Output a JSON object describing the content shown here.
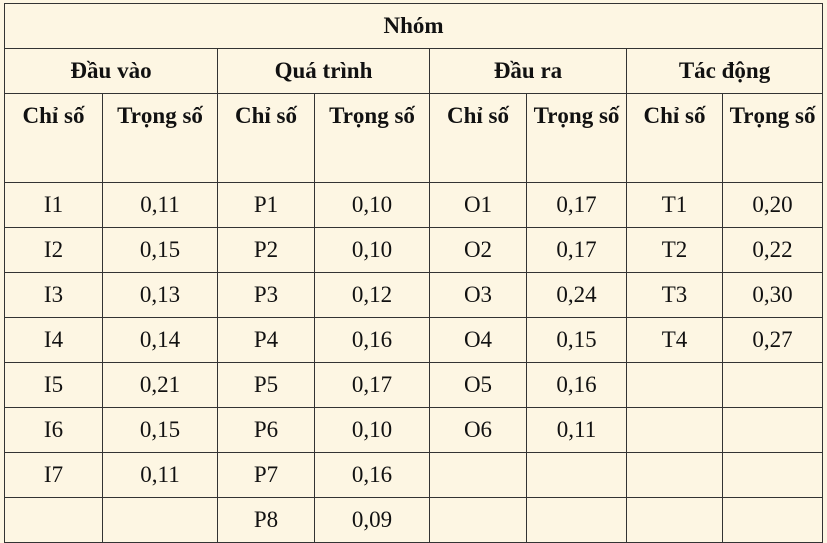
{
  "title": "Nhóm",
  "groups": [
    {
      "name": "Đầu vào",
      "col_code": "Chỉ số",
      "col_weight": "Trọng số"
    },
    {
      "name": "Quá trình",
      "col_code": "Chỉ số",
      "col_weight": "Trọng số"
    },
    {
      "name": "Đầu ra",
      "col_code": "Chỉ số",
      "col_weight": "Trọng số"
    },
    {
      "name": "Tác động",
      "col_code": "Chỉ số",
      "col_weight": "Trọng số"
    }
  ],
  "rows": [
    [
      [
        "I1",
        "0,11"
      ],
      [
        "P1",
        "0,10"
      ],
      [
        "O1",
        "0,17"
      ],
      [
        "T1",
        "0,20"
      ]
    ],
    [
      [
        "I2",
        "0,15"
      ],
      [
        "P2",
        "0,10"
      ],
      [
        "O2",
        "0,17"
      ],
      [
        "T2",
        "0,22"
      ]
    ],
    [
      [
        "I3",
        "0,13"
      ],
      [
        "P3",
        "0,12"
      ],
      [
        "O3",
        "0,24"
      ],
      [
        "T3",
        "0,30"
      ]
    ],
    [
      [
        "I4",
        "0,14"
      ],
      [
        "P4",
        "0,16"
      ],
      [
        "O4",
        "0,15"
      ],
      [
        "T4",
        "0,27"
      ]
    ],
    [
      [
        "I5",
        "0,21"
      ],
      [
        "P5",
        "0,17"
      ],
      [
        "O5",
        "0,16"
      ],
      [
        "",
        ""
      ]
    ],
    [
      [
        "I6",
        "0,15"
      ],
      [
        "P6",
        "0,10"
      ],
      [
        "O6",
        "0,11"
      ],
      [
        "",
        ""
      ]
    ],
    [
      [
        "I7",
        "0,11"
      ],
      [
        "P7",
        "0,16"
      ],
      [
        "",
        ""
      ],
      [
        "",
        ""
      ]
    ],
    [
      [
        "",
        ""
      ],
      [
        "P8",
        "0,09"
      ],
      [
        "",
        ""
      ],
      [
        "",
        ""
      ]
    ]
  ]
}
